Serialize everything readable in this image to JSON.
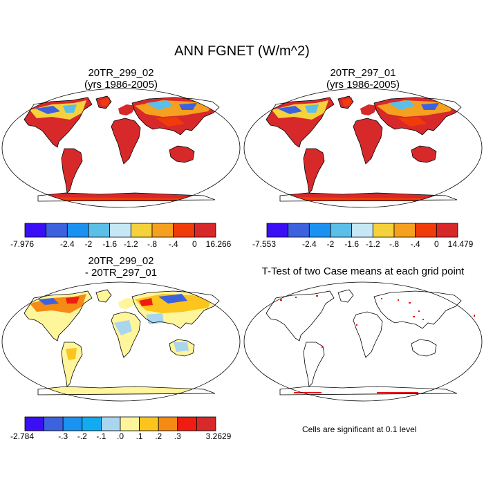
{
  "main_title": "ANN FGNET (W/m^2)",
  "panels": [
    {
      "title_line1": "20TR_299_02",
      "title_line2": "(yrs 1986-2005)"
    },
    {
      "title_line1": "20TR_297_01",
      "title_line2": "(yrs 1986-2005)"
    },
    {
      "title_line1": "20TR_299_02",
      "title_line2": "- 20TR_297_01"
    },
    {
      "title_line1": "T-Test of two Case means at each grid point",
      "title_line2": ""
    }
  ],
  "colorbars": [
    {
      "colors": [
        "#3b0ff5",
        "#3d62dd",
        "#1a92f2",
        "#5bbfe8",
        "#c6e8f5",
        "#f5d23c",
        "#f5a01e",
        "#f03c0a",
        "#d7282a"
      ],
      "labels": [
        "-7.976",
        "-2.4",
        "-2",
        "-1.6",
        "-1.2",
        "-.8",
        "-.4",
        "0",
        "16.266"
      ]
    },
    {
      "colors": [
        "#3b0ff5",
        "#3d62dd",
        "#1a92f2",
        "#5bbfe8",
        "#c6e8f5",
        "#f5d23c",
        "#f5a01e",
        "#f03c0a",
        "#d7282a"
      ],
      "labels": [
        "-7.553",
        "-2.4",
        "-2",
        "-1.6",
        "-1.2",
        "-.8",
        "-.4",
        "0",
        "14.479"
      ]
    },
    {
      "colors": [
        "#3b0ff5",
        "#3d62dd",
        "#1a92f2",
        "#12aaf0",
        "#a9d5ef",
        "#fff59a",
        "#fbc51e",
        "#f58a14",
        "#ef1c12",
        "#d7282a"
      ],
      "labels": [
        "-2.784",
        "-.3",
        "-.2",
        "-.1",
        ".0",
        ".1",
        ".2",
        ".3",
        "3.2629"
      ]
    }
  ],
  "ttest_note": "Cells are significant at 0.1 level"
}
